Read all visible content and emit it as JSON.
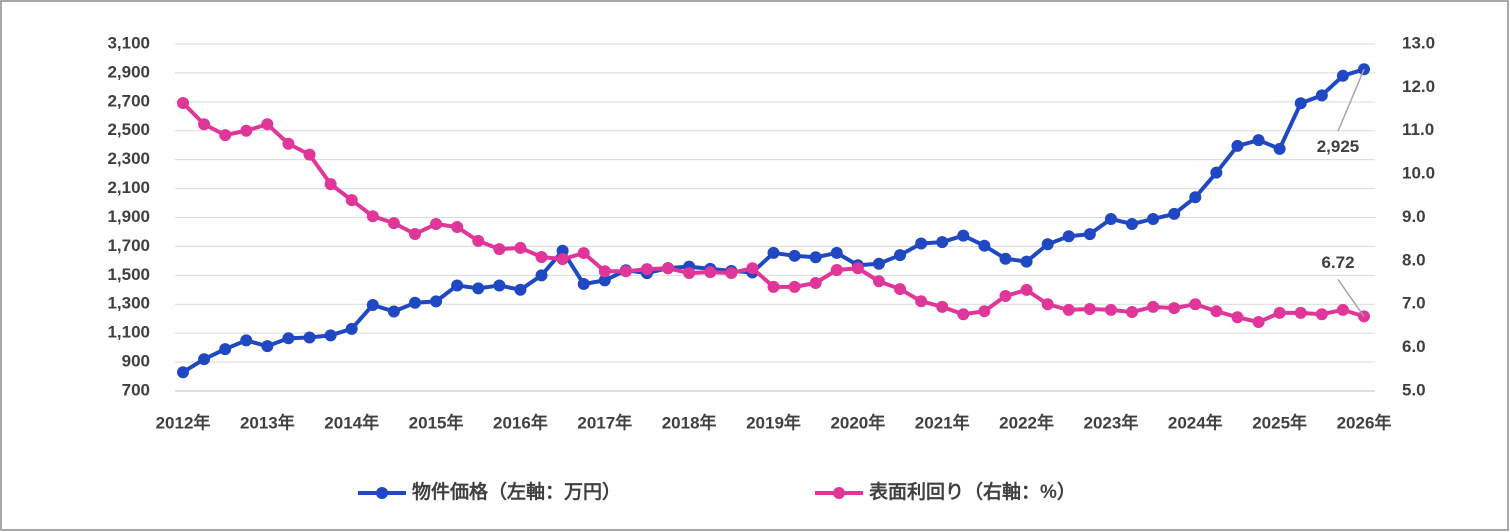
{
  "chart_data": {
    "type": "line",
    "categories": [
      "2012年",
      null,
      null,
      null,
      "2013年",
      null,
      null,
      null,
      "2014年",
      null,
      null,
      null,
      "2015年",
      null,
      null,
      null,
      "2016年",
      null,
      null,
      null,
      "2017年",
      null,
      null,
      null,
      "2018年",
      null,
      null,
      null,
      "2019年",
      null,
      null,
      null,
      "2020年",
      null,
      null,
      null,
      "2021年",
      null,
      null,
      null,
      "2022年",
      null,
      null,
      null,
      "2023年",
      null,
      null,
      null,
      "2024年",
      null,
      null,
      null,
      "2025年",
      null,
      null,
      null,
      "2026年"
    ],
    "series": [
      {
        "name": "物件価格（左軸：万円）",
        "color": "#1f48c2",
        "values": [
          830,
          920,
          990,
          1050,
          1010,
          1065,
          1070,
          1085,
          1130,
          1295,
          1250,
          1310,
          1320,
          1430,
          1410,
          1430,
          1400,
          1500,
          1670,
          1440,
          1465,
          1535,
          1515,
          1550,
          1560,
          1545,
          1530,
          1520,
          1655,
          1635,
          1625,
          1655,
          1570,
          1580,
          1640,
          1720,
          1730,
          1775,
          1705,
          1615,
          1595,
          1715,
          1770,
          1785,
          1890,
          1855,
          1890,
          1925,
          2040,
          2210,
          2395,
          2435,
          2375,
          2690,
          2745,
          2880,
          2925
        ],
        "value_labels": [
          null,
          null,
          null,
          null,
          null,
          null,
          null,
          null,
          null,
          null,
          null,
          null,
          null,
          null,
          null,
          null,
          null,
          null,
          null,
          null,
          null,
          null,
          null,
          null,
          null,
          null,
          null,
          null,
          null,
          null,
          null,
          null,
          null,
          null,
          null,
          null,
          null,
          null,
          null,
          null,
          null,
          null,
          null,
          null,
          null,
          null,
          null,
          null,
          null,
          null,
          null,
          null,
          null,
          null,
          null,
          null,
          "2,925"
        ]
      },
      {
        "name": "表面利回り（右軸：%）",
        "color": "#e0369a",
        "axis": "y2",
        "values": [
          11.64,
          11.15,
          10.9,
          11.0,
          11.15,
          10.7,
          10.45,
          9.77,
          9.4,
          9.03,
          8.87,
          8.62,
          8.85,
          8.78,
          8.46,
          8.27,
          8.3,
          8.09,
          8.04,
          8.18,
          7.76,
          7.76,
          7.81,
          7.83,
          7.72,
          7.74,
          7.72,
          7.83,
          7.4,
          7.4,
          7.49,
          7.79,
          7.83,
          7.53,
          7.35,
          7.07,
          6.94,
          6.77,
          6.84,
          7.19,
          7.33,
          7.0,
          6.87,
          6.89,
          6.87,
          6.82,
          6.94,
          6.91,
          7.0,
          6.84,
          6.7,
          6.59,
          6.8,
          6.8,
          6.77,
          6.87,
          6.72
        ],
        "value_labels": [
          null,
          null,
          null,
          null,
          null,
          null,
          null,
          null,
          null,
          null,
          null,
          null,
          null,
          null,
          null,
          null,
          null,
          null,
          null,
          null,
          null,
          null,
          null,
          null,
          null,
          null,
          null,
          null,
          null,
          null,
          null,
          null,
          null,
          null,
          null,
          null,
          null,
          null,
          null,
          null,
          null,
          null,
          null,
          null,
          null,
          null,
          null,
          null,
          null,
          null,
          null,
          null,
          null,
          null,
          null,
          null,
          "6.72"
        ]
      }
    ],
    "ylim": [
      700,
      3100
    ],
    "yticks": [
      700,
      900,
      {
        "value": 1100,
        "label": "1,100"
      },
      {
        "value": 1300,
        "label": "1,300"
      },
      {
        "value": 1500,
        "label": "1,500"
      },
      {
        "value": 1700,
        "label": "1,700"
      },
      {
        "value": 1900,
        "label": "1,900"
      },
      {
        "value": 2100,
        "label": "2,100"
      },
      {
        "value": 2300,
        "label": "2,300"
      },
      {
        "value": 2500,
        "label": "2,500"
      },
      {
        "value": 2700,
        "label": "2,700"
      },
      {
        "value": 2900,
        "label": "2,900"
      },
      {
        "value": 3100,
        "label": "3,100"
      }
    ],
    "y2lim": [
      5,
      13
    ],
    "y2ticks": [
      {
        "value": 5,
        "label": "5.0"
      },
      {
        "value": 6,
        "label": "6.0"
      },
      {
        "value": 7,
        "label": "7.0"
      },
      {
        "value": 8,
        "label": "8.0"
      },
      {
        "value": 9,
        "label": "9.0"
      },
      {
        "value": 10,
        "label": "10.0"
      },
      {
        "value": 11,
        "label": "11.0"
      },
      {
        "value": 12,
        "label": "12.0"
      },
      {
        "value": 13,
        "label": "13.0"
      }
    ],
    "grid": true,
    "legend": "bottom"
  }
}
